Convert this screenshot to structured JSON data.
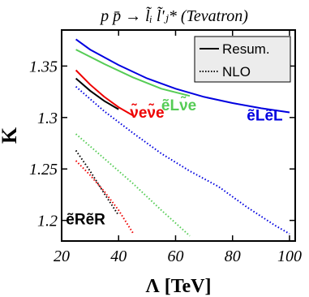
{
  "chart_data": {
    "type": "line",
    "title": "p p̄ → l̃ᵢ l̃'ⱼ* (Tevatron)",
    "xlabel": "Λ [TeV]",
    "ylabel": "K",
    "xlim": [
      20,
      102
    ],
    "ylim": [
      1.18,
      1.385
    ],
    "xticks": [
      "20",
      "40",
      "60",
      "80",
      "100"
    ],
    "xtick_values": [
      20,
      40,
      60,
      80,
      100
    ],
    "yticks": [
      "1.2",
      "1.25",
      "1.3",
      "1.35"
    ],
    "ytick_values": [
      1.2,
      1.25,
      1.3,
      1.35
    ],
    "grid": false,
    "legend": {
      "placement": "top-right",
      "entries": [
        {
          "label": "Resum.",
          "style": "solid"
        },
        {
          "label": "NLO",
          "style": "dotted"
        }
      ]
    },
    "series": [
      {
        "name": "ẽLẽL",
        "color": "#0000e0",
        "resum": {
          "x": [
            25,
            30,
            40,
            50,
            60,
            70,
            80,
            90,
            100
          ],
          "y": [
            1.376,
            1.366,
            1.351,
            1.338,
            1.328,
            1.32,
            1.314,
            1.309,
            1.305
          ]
        },
        "nlo": {
          "x": [
            25,
            35,
            45,
            55,
            65,
            75,
            85,
            95,
            100
          ],
          "y": [
            1.33,
            1.306,
            1.285,
            1.265,
            1.248,
            1.233,
            1.213,
            1.195,
            1.187
          ]
        }
      },
      {
        "name": "ẽLν̃e",
        "color": "#55cc55",
        "resum": {
          "x": [
            25,
            35,
            45,
            55,
            65
          ],
          "y": [
            1.366,
            1.352,
            1.339,
            1.328,
            1.321
          ]
        },
        "nlo": {
          "x": [
            25,
            35,
            45,
            55,
            65
          ],
          "y": [
            1.284,
            1.26,
            1.236,
            1.21,
            1.185
          ]
        }
      },
      {
        "name": "ν̃eν̃e",
        "color": "#ee0000",
        "resum": {
          "x": [
            25,
            30,
            35,
            40,
            45
          ],
          "y": [
            1.346,
            1.332,
            1.32,
            1.31,
            1.302
          ]
        },
        "nlo": {
          "x": [
            25,
            30,
            35,
            40,
            45
          ],
          "y": [
            1.258,
            1.244,
            1.228,
            1.21,
            1.188
          ]
        }
      },
      {
        "name": "ẽRẽR",
        "color": "#000000",
        "resum": {
          "x": [
            25,
            30,
            35,
            40
          ],
          "y": [
            1.338,
            1.326,
            1.316,
            1.308
          ]
        },
        "nlo": {
          "x": [
            25,
            30,
            35,
            40
          ],
          "y": [
            1.268,
            1.248,
            1.226,
            1.205
          ]
        }
      }
    ],
    "annotations": [
      {
        "text": "ẽLẽL",
        "color": "#0000e0",
        "at": [
          85,
          1.297
        ]
      },
      {
        "text": "ẽLν̃e",
        "color": "#55cc55",
        "at": [
          55,
          1.307
        ]
      },
      {
        "text": "ν̃eν̃e",
        "color": "#ee0000",
        "at": [
          44,
          1.3
        ]
      },
      {
        "text": "ẽRẽR",
        "color": "#000000",
        "at": [
          21.5,
          1.196
        ]
      }
    ]
  }
}
